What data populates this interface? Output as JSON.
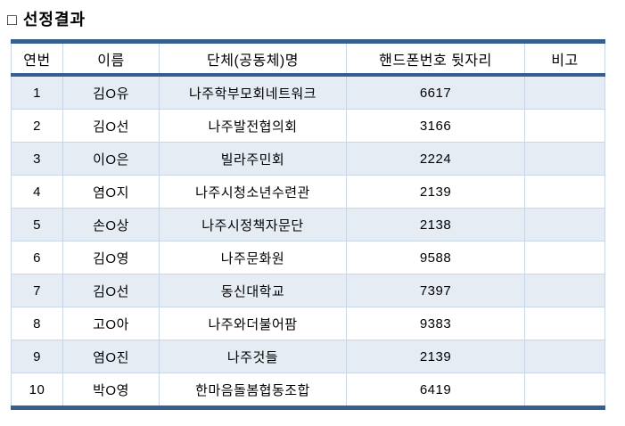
{
  "page": {
    "title": "□ 선정결과"
  },
  "table": {
    "columns": {
      "no": "연번",
      "name": "이름",
      "org": "단체(공동체)명",
      "phone": "핸드폰번호 뒷자리",
      "note": "비고"
    },
    "rows": [
      {
        "no": "1",
        "name": "김O유",
        "org": "나주학부모회네트워크",
        "phone": "6617",
        "note": ""
      },
      {
        "no": "2",
        "name": "김O선",
        "org": "나주발전협의회",
        "phone": "3166",
        "note": ""
      },
      {
        "no": "3",
        "name": "이O은",
        "org": "빌라주민회",
        "phone": "2224",
        "note": ""
      },
      {
        "no": "4",
        "name": "염O지",
        "org": "나주시청소년수련관",
        "phone": "2139",
        "note": ""
      },
      {
        "no": "5",
        "name": "손O상",
        "org": "나주시정책자문단",
        "phone": "2138",
        "note": ""
      },
      {
        "no": "6",
        "name": "김O영",
        "org": "나주문화원",
        "phone": "9588",
        "note": ""
      },
      {
        "no": "7",
        "name": "김O선",
        "org": "동신대학교",
        "phone": "7397",
        "note": ""
      },
      {
        "no": "8",
        "name": "고O아",
        "org": "나주와더불어팜",
        "phone": "9383",
        "note": ""
      },
      {
        "no": "9",
        "name": "염O진",
        "org": "나주것들",
        "phone": "2139",
        "note": ""
      },
      {
        "no": "10",
        "name": "박O영",
        "org": "한마음돌봄협동조합",
        "phone": "6419",
        "note": ""
      }
    ]
  },
  "colors": {
    "border_dark": "#35608e",
    "grid_line": "#c9d6e6",
    "stripe": "#e6ecf4",
    "background": "#ffffff",
    "text": "#000000"
  }
}
